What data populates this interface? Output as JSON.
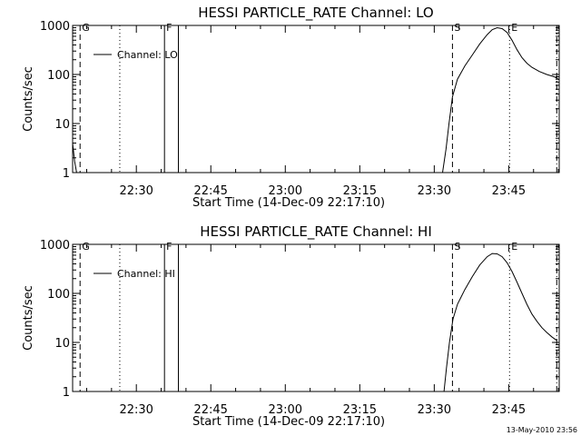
{
  "chart_data": [
    {
      "type": "line",
      "title": "HESSI PARTICLE_RATE Channel: LO",
      "xlabel": "Start Time (14-Dec-09 22:17:10)",
      "ylabel": "Counts/sec",
      "yscale": "log",
      "ylim": [
        1,
        1000
      ],
      "xlim_minutes": [
        0,
        98
      ],
      "xtick_labels": [
        "22:30",
        "22:45",
        "23:00",
        "23:15",
        "23:30",
        "23:45"
      ],
      "ytick_labels": [
        "1",
        "10",
        "100",
        "1000"
      ],
      "legend": {
        "label": "Channel: LO",
        "placement": "top-left"
      },
      "markers": [
        {
          "label": "G",
          "x": 1.5,
          "style": "dashed"
        },
        {
          "label": "F",
          "x": 18.5,
          "style": "solid"
        },
        {
          "label": "S",
          "x": 76.5,
          "style": "dashed"
        },
        {
          "label": "E",
          "x": 88.0,
          "style": "dotted"
        }
      ],
      "extra_lines": [
        {
          "x": 9.5,
          "style": "dotted"
        },
        {
          "x": 21.3,
          "style": "solid"
        },
        {
          "x": 97.5,
          "style": "dashdot"
        }
      ],
      "series": [
        {
          "values": [
            [
              0,
              4
            ],
            [
              0.4,
              1.7
            ],
            [
              0.8,
              1
            ],
            [
              74.5,
              1
            ],
            [
              75.2,
              3
            ],
            [
              75.8,
              10
            ],
            [
              76.5,
              35
            ],
            [
              77.5,
              80
            ],
            [
              79,
              150
            ],
            [
              80.5,
              250
            ],
            [
              82,
              420
            ],
            [
              83.5,
              650
            ],
            [
              84.5,
              820
            ],
            [
              85.5,
              900
            ],
            [
              86.5,
              860
            ],
            [
              87.5,
              720
            ],
            [
              88.5,
              500
            ],
            [
              89.5,
              320
            ],
            [
              90.5,
              220
            ],
            [
              91.5,
              170
            ],
            [
              92.5,
              140
            ],
            [
              94,
              115
            ],
            [
              95.5,
              100
            ],
            [
              97,
              90
            ],
            [
              98,
              78
            ]
          ]
        }
      ]
    },
    {
      "type": "line",
      "title": "HESSI PARTICLE_RATE Channel: HI",
      "xlabel": "Start Time (14-Dec-09 22:17:10)",
      "ylabel": "Counts/sec",
      "yscale": "log",
      "ylim": [
        1,
        1000
      ],
      "xlim_minutes": [
        0,
        98
      ],
      "xtick_labels": [
        "22:30",
        "22:45",
        "23:00",
        "23:15",
        "23:30",
        "23:45"
      ],
      "ytick_labels": [
        "1",
        "10",
        "100",
        "1000"
      ],
      "legend": {
        "label": "Channel: HI",
        "placement": "top-left"
      },
      "markers": [
        {
          "label": "G",
          "x": 1.5,
          "style": "dashed"
        },
        {
          "label": "F",
          "x": 18.5,
          "style": "solid"
        },
        {
          "label": "S",
          "x": 76.5,
          "style": "dashed"
        },
        {
          "label": "E",
          "x": 88.0,
          "style": "dotted"
        }
      ],
      "extra_lines": [
        {
          "x": 9.5,
          "style": "dotted"
        },
        {
          "x": 21.3,
          "style": "solid"
        },
        {
          "x": 97.5,
          "style": "dashdot"
        }
      ],
      "series": [
        {
          "values": [
            [
              74.8,
              1
            ],
            [
              75.3,
              3
            ],
            [
              75.9,
              10
            ],
            [
              76.6,
              30
            ],
            [
              77.5,
              60
            ],
            [
              79,
              120
            ],
            [
              80.5,
              220
            ],
            [
              82,
              380
            ],
            [
              83.5,
              560
            ],
            [
              84.5,
              650
            ],
            [
              85.5,
              640
            ],
            [
              86.5,
              560
            ],
            [
              87.5,
              420
            ],
            [
              88.5,
              280
            ],
            [
              89.5,
              170
            ],
            [
              90.5,
              100
            ],
            [
              91.5,
              60
            ],
            [
              92.5,
              38
            ],
            [
              93.5,
              27
            ],
            [
              94.5,
              20
            ],
            [
              95.5,
              16
            ],
            [
              96.5,
              13
            ],
            [
              97.5,
              11
            ]
          ]
        }
      ]
    }
  ],
  "timestamp": "13-May-2010 23:56",
  "colors": {
    "ink": "#000000",
    "background": "#ffffff"
  }
}
